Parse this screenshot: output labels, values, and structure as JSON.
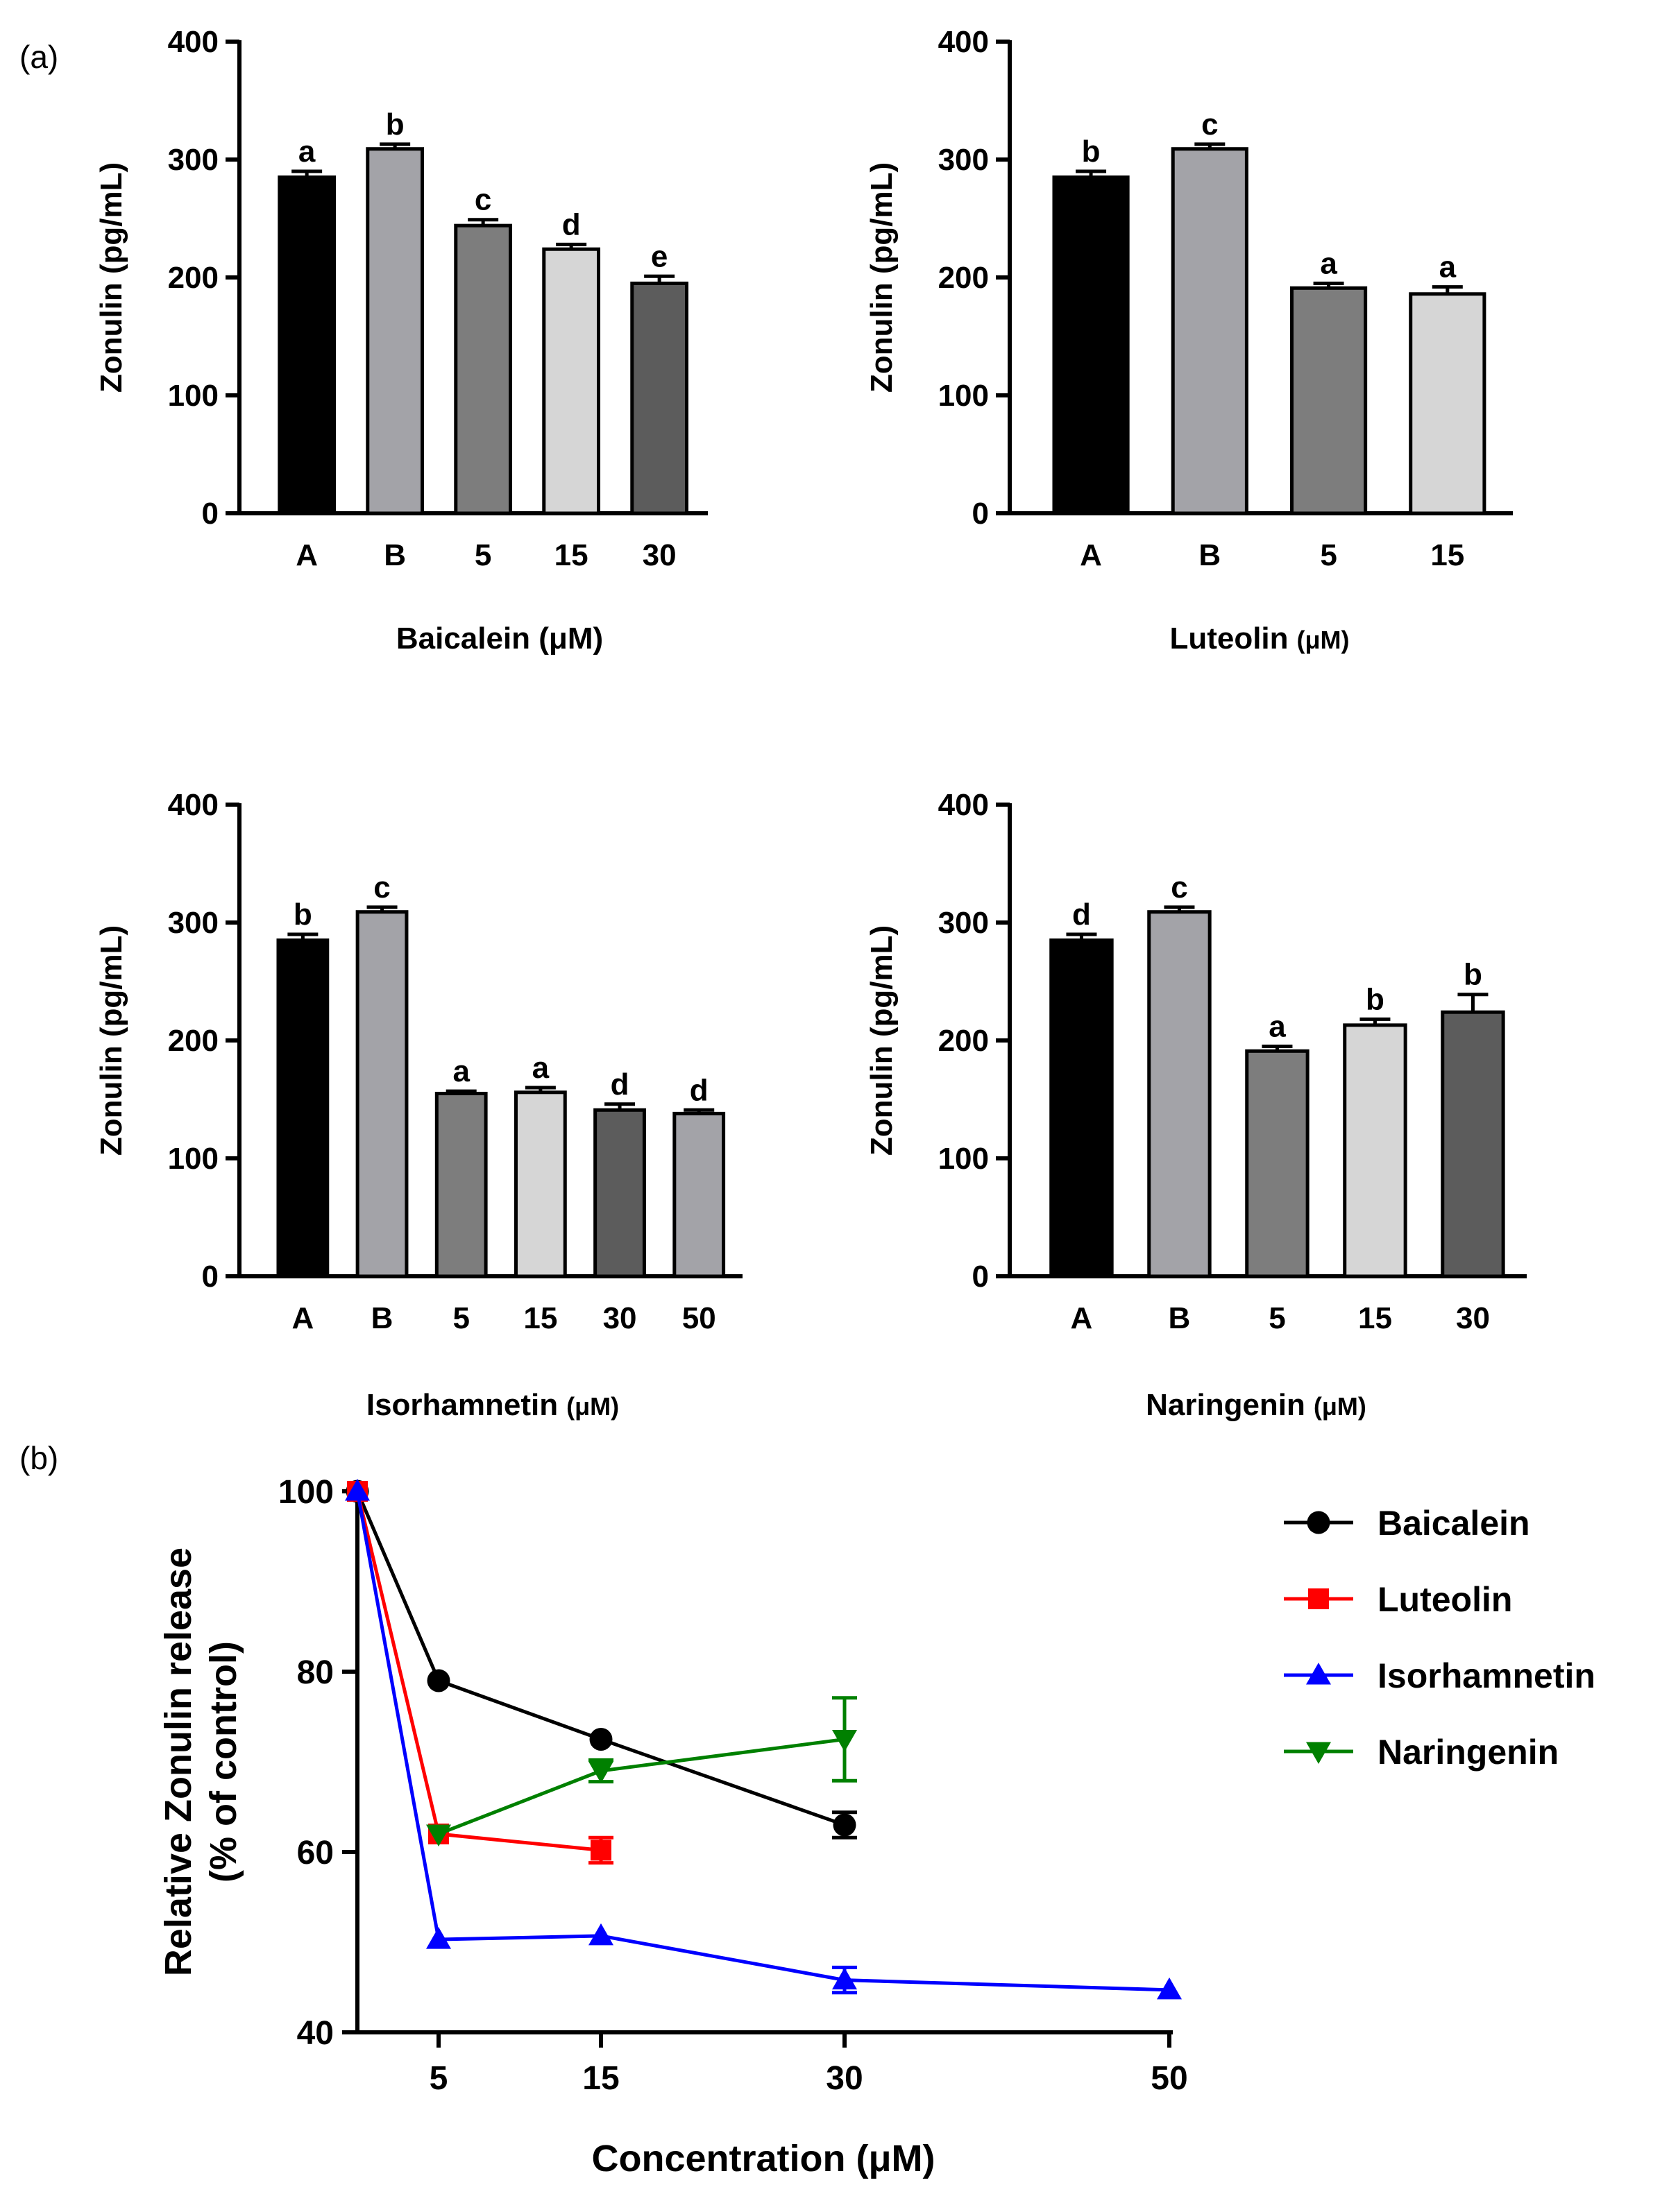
{
  "figure": {
    "label_a": "(a)",
    "label_b": "(b)"
  },
  "chart_data": [
    {
      "type": "bar",
      "title": "",
      "xlabel": "Baicalein (μM)",
      "ylabel": "Zonulin (pg/mL)",
      "ylim": [
        0,
        400
      ],
      "yticks": [
        "0",
        "100",
        "200",
        "300",
        "400"
      ],
      "categories": [
        "A",
        "B",
        "5",
        "15",
        "30"
      ],
      "values": [
        285,
        309,
        244,
        224,
        195
      ],
      "errors": [
        5,
        4,
        5,
        4,
        6
      ],
      "significance": [
        "a",
        "b",
        "c",
        "d",
        "e"
      ],
      "colors": [
        "#000000",
        "#a3a3a8",
        "#7d7d7d",
        "#d6d6d6",
        "#5c5c5c"
      ]
    },
    {
      "type": "bar",
      "title": "",
      "xlabel": "Luteolin",
      "xlabel_unit": "(μM)",
      "ylabel": "Zonulin (pg/mL)",
      "ylim": [
        0,
        400
      ],
      "yticks": [
        "0",
        "100",
        "200",
        "300",
        "400"
      ],
      "categories": [
        "A",
        "B",
        "5",
        "15"
      ],
      "values": [
        285,
        309,
        191,
        186
      ],
      "errors": [
        5,
        4,
        4,
        6
      ],
      "significance": [
        "b",
        "c",
        "a",
        "a"
      ],
      "colors": [
        "#000000",
        "#a3a3a8",
        "#7d7d7d",
        "#d6d6d6"
      ]
    },
    {
      "type": "bar",
      "title": "",
      "xlabel": "Isorhamnetin",
      "xlabel_unit": "(μM)",
      "ylabel": "Zonulin (pg/mL)",
      "ylim": [
        0,
        400
      ],
      "yticks": [
        "0",
        "100",
        "200",
        "300",
        "400"
      ],
      "categories": [
        "A",
        "B",
        "5",
        "15",
        "30",
        "50"
      ],
      "values": [
        285,
        309,
        155,
        156,
        141,
        138
      ],
      "errors": [
        5,
        4,
        2,
        4,
        5,
        3
      ],
      "significance": [
        "b",
        "c",
        "a",
        "a",
        "d",
        "d"
      ],
      "colors": [
        "#000000",
        "#a3a3a8",
        "#7d7d7d",
        "#d6d6d6",
        "#5c5c5c",
        "#a3a3a8"
      ]
    },
    {
      "type": "bar",
      "title": "",
      "xlabel": "Naringenin",
      "xlabel_unit": "(μM)",
      "ylabel": "Zonulin (pg/mL)",
      "ylim": [
        0,
        400
      ],
      "yticks": [
        "0",
        "100",
        "200",
        "300",
        "400"
      ],
      "categories": [
        "A",
        "B",
        "5",
        "15",
        "30"
      ],
      "values": [
        285,
        309,
        191,
        213,
        224
      ],
      "errors": [
        5,
        4,
        4,
        5,
        15
      ],
      "significance": [
        "d",
        "c",
        "a",
        "b",
        "b"
      ],
      "colors": [
        "#000000",
        "#a3a3a8",
        "#7d7d7d",
        "#d6d6d6",
        "#5c5c5c"
      ]
    },
    {
      "type": "line",
      "title": "",
      "xlabel": "Concentration (μM)",
      "ylabel_line1": "Relative Zonulin release",
      "ylabel_line2": "(% of control)",
      "xlim": [
        0,
        50
      ],
      "ylim": [
        40,
        100
      ],
      "xticks": [
        "5",
        "15",
        "30",
        "50"
      ],
      "yticks": [
        "40",
        "60",
        "80",
        "100"
      ],
      "legend_position": "right",
      "series": [
        {
          "name": "Baicalein",
          "color": "#000000",
          "marker": "circle",
          "x": [
            0,
            5,
            15,
            30
          ],
          "y": [
            100,
            79,
            72.5,
            63
          ],
          "err": [
            0,
            0,
            0,
            1.4
          ]
        },
        {
          "name": "Luteolin",
          "color": "#ff0000",
          "marker": "square",
          "x": [
            0,
            5,
            15
          ],
          "y": [
            100,
            62,
            60.2
          ],
          "err": [
            0,
            0,
            1.4
          ]
        },
        {
          "name": "Isorhamnetin",
          "color": "#0000ff",
          "marker": "triangle-up",
          "x": [
            0,
            5,
            15,
            30,
            50
          ],
          "y": [
            100,
            50.3,
            50.7,
            45.8,
            44.7
          ],
          "err": [
            0,
            0,
            0,
            1.4,
            0
          ]
        },
        {
          "name": "Naringenin",
          "color": "#008000",
          "marker": "triangle-down",
          "x": [
            5,
            15,
            30
          ],
          "y": [
            62,
            69,
            72.5
          ],
          "err": [
            0,
            1.2,
            4.6
          ]
        }
      ]
    }
  ]
}
